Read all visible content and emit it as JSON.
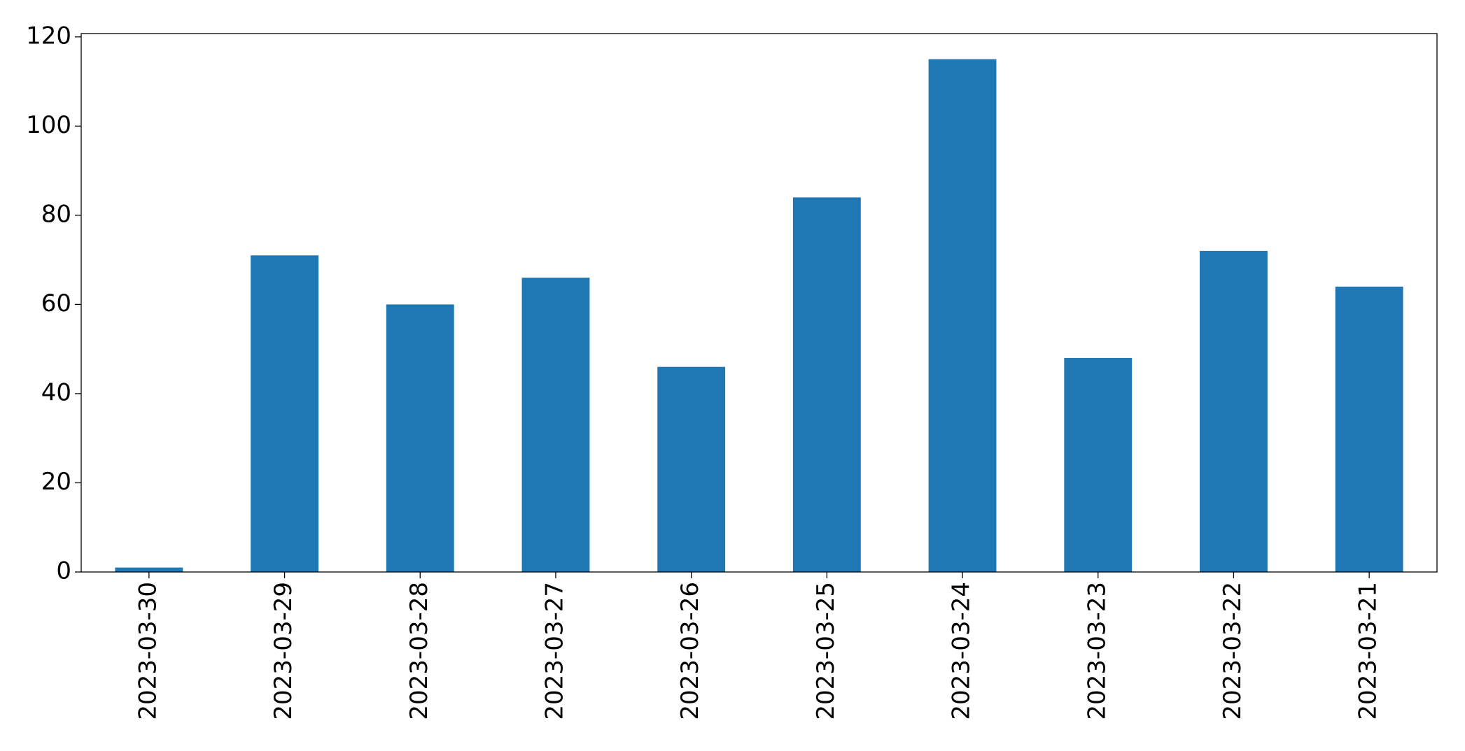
{
  "chart_data": {
    "type": "bar",
    "categories": [
      "2023-03-30",
      "2023-03-29",
      "2023-03-28",
      "2023-03-27",
      "2023-03-26",
      "2023-03-25",
      "2023-03-24",
      "2023-03-23",
      "2023-03-22",
      "2023-03-21"
    ],
    "values": [
      1,
      71,
      60,
      66,
      46,
      84,
      115,
      48,
      72,
      64
    ],
    "color": "#1f77b4",
    "ylim": [
      0,
      120.75
    ],
    "yticks": [
      0,
      20,
      40,
      60,
      80,
      100,
      120
    ],
    "grid": false
  }
}
